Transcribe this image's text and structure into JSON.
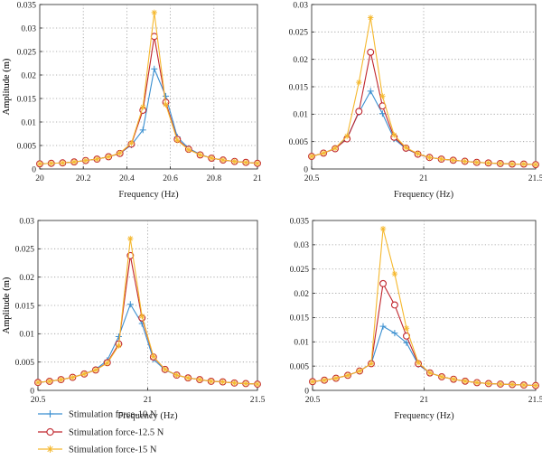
{
  "chart_data": [
    {
      "type": "line",
      "xlabel": "Frequency (Hz)",
      "ylabel": "Amplitude (m)",
      "xlim": [
        20,
        21
      ],
      "ylim": [
        0,
        0.035
      ],
      "x_ticks": [
        "20",
        "20.2",
        "20.4",
        "20.6",
        "20.8",
        "21"
      ],
      "x_tick_values": [
        20,
        20.2,
        20.4,
        20.6,
        20.8,
        21
      ],
      "y_ticks": [
        "0",
        "0.005",
        "0.01",
        "0.015",
        "0.02",
        "0.025",
        "0.03",
        "0.035"
      ],
      "y_tick_values": [
        0,
        0.005,
        0.01,
        0.015,
        0.02,
        0.025,
        0.03,
        0.035
      ],
      "grid": "dotted-major",
      "x": [
        20.0,
        20.053,
        20.105,
        20.158,
        20.211,
        20.263,
        20.316,
        20.368,
        20.421,
        20.474,
        20.526,
        20.579,
        20.632,
        20.684,
        20.737,
        20.789,
        20.842,
        20.895,
        20.947,
        21.0
      ],
      "series": [
        {
          "name": "Stimulation force-10 N",
          "values": [
            0.0011,
            0.0012,
            0.0013,
            0.0015,
            0.0018,
            0.0021,
            0.0026,
            0.0033,
            0.0051,
            0.0083,
            0.0213,
            0.0155,
            0.0068,
            0.0044,
            0.0031,
            0.0023,
            0.0019,
            0.0016,
            0.0014,
            0.0012
          ]
        },
        {
          "name": "Stimulation force-12.5 N",
          "values": [
            0.0011,
            0.0012,
            0.0013,
            0.0015,
            0.0018,
            0.0021,
            0.0026,
            0.0033,
            0.0053,
            0.0125,
            0.0282,
            0.0142,
            0.0063,
            0.0042,
            0.003,
            0.0023,
            0.0019,
            0.0016,
            0.0014,
            0.0012
          ]
        },
        {
          "name": "Stimulation force-15 N",
          "values": [
            0.0011,
            0.0012,
            0.0013,
            0.0015,
            0.0018,
            0.0021,
            0.0026,
            0.0034,
            0.0055,
            0.0132,
            0.0333,
            0.0137,
            0.0061,
            0.0041,
            0.003,
            0.0023,
            0.0019,
            0.0016,
            0.0014,
            0.0012
          ]
        }
      ]
    },
    {
      "type": "line",
      "xlabel": "Frequency (Hz)",
      "ylabel": "Amplitude (m)",
      "xlim": [
        20.5,
        21.5
      ],
      "ylim": [
        0,
        0.03
      ],
      "x_ticks": [
        "20.5",
        "21",
        "21.5"
      ],
      "x_tick_values": [
        20.5,
        21,
        21.5
      ],
      "y_ticks": [
        "0",
        "0.005",
        "0.01",
        "0.015",
        "0.02",
        "0.025",
        "0.03"
      ],
      "y_tick_values": [
        0,
        0.005,
        0.01,
        0.015,
        0.02,
        0.025,
        0.03
      ],
      "grid": "dotted-major",
      "x": [
        20.5,
        20.553,
        20.605,
        20.658,
        20.711,
        20.763,
        20.816,
        20.868,
        20.921,
        20.974,
        21.026,
        21.079,
        21.132,
        21.184,
        21.237,
        21.289,
        21.342,
        21.395,
        21.447,
        21.5
      ],
      "series": [
        {
          "name": "Stimulation force-10 N",
          "values": [
            0.0023,
            0.0029,
            0.0038,
            0.0057,
            0.0103,
            0.0142,
            0.0101,
            0.0055,
            0.0037,
            0.0027,
            0.0021,
            0.0018,
            0.0016,
            0.0014,
            0.0012,
            0.0011,
            0.001,
            0.0009,
            0.0009,
            0.0008
          ]
        },
        {
          "name": "Stimulation force-12.5 N",
          "values": [
            0.0023,
            0.0029,
            0.0037,
            0.0055,
            0.0105,
            0.0213,
            0.0115,
            0.0058,
            0.0038,
            0.0027,
            0.0021,
            0.0018,
            0.0016,
            0.0014,
            0.0012,
            0.0011,
            0.001,
            0.0009,
            0.0009,
            0.0008
          ]
        },
        {
          "name": "Stimulation force-15 N",
          "values": [
            0.0023,
            0.0029,
            0.0038,
            0.006,
            0.0158,
            0.0276,
            0.0133,
            0.0062,
            0.0039,
            0.0028,
            0.0021,
            0.0018,
            0.0016,
            0.0014,
            0.0012,
            0.0011,
            0.001,
            0.0009,
            0.0009,
            0.0008
          ]
        }
      ]
    },
    {
      "type": "line",
      "xlabel": "Frequency (Hz)",
      "ylabel": "Amplitude (m)",
      "xlim": [
        20.5,
        21.5
      ],
      "ylim": [
        0,
        0.03
      ],
      "x_ticks": [
        "20.5",
        "21",
        "21.5"
      ],
      "x_tick_values": [
        20.5,
        21,
        21.5
      ],
      "y_ticks": [
        "0",
        "0.005",
        "0.01",
        "0.015",
        "0.02",
        "0.025",
        "0.03"
      ],
      "y_tick_values": [
        0,
        0.005,
        0.01,
        0.015,
        0.02,
        0.025,
        0.03
      ],
      "grid": "dotted-major",
      "x": [
        20.5,
        20.553,
        20.605,
        20.658,
        20.711,
        20.763,
        20.816,
        20.868,
        20.921,
        20.974,
        21.026,
        21.079,
        21.132,
        21.184,
        21.237,
        21.289,
        21.342,
        21.395,
        21.447,
        21.5
      ],
      "series": [
        {
          "name": "Stimulation force-10 N",
          "values": [
            0.0014,
            0.0016,
            0.0019,
            0.0023,
            0.0029,
            0.0037,
            0.0053,
            0.0095,
            0.0152,
            0.0118,
            0.0055,
            0.0036,
            0.0027,
            0.0022,
            0.0019,
            0.0016,
            0.0015,
            0.0013,
            0.0012,
            0.0011
          ]
        },
        {
          "name": "Stimulation force-12.5 N",
          "values": [
            0.0014,
            0.0016,
            0.0019,
            0.0023,
            0.0029,
            0.0036,
            0.0049,
            0.0082,
            0.0238,
            0.0128,
            0.0059,
            0.0037,
            0.0027,
            0.0022,
            0.0019,
            0.0016,
            0.0015,
            0.0013,
            0.0012,
            0.0011
          ]
        },
        {
          "name": "Stimulation force-15 N",
          "values": [
            0.0014,
            0.0016,
            0.0019,
            0.0023,
            0.0029,
            0.0036,
            0.0048,
            0.0079,
            0.0268,
            0.0131,
            0.006,
            0.0037,
            0.0027,
            0.0022,
            0.0019,
            0.0016,
            0.0015,
            0.0013,
            0.0012,
            0.0011
          ]
        }
      ]
    },
    {
      "type": "line",
      "xlabel": "Frequency (Hz)",
      "ylabel": "Amplitude (m)",
      "xlim": [
        20.5,
        21.5
      ],
      "ylim": [
        0,
        0.035
      ],
      "x_ticks": [
        "20.5",
        "21",
        "21.5"
      ],
      "x_tick_values": [
        20.5,
        21,
        21.5
      ],
      "y_ticks": [
        "0",
        "0.005",
        "0.01",
        "0.015",
        "0.02",
        "0.025",
        "0.03",
        "0.035"
      ],
      "y_tick_values": [
        0,
        0.005,
        0.01,
        0.015,
        0.02,
        0.025,
        0.03,
        0.035
      ],
      "grid": "dotted-major",
      "x": [
        20.5,
        20.553,
        20.605,
        20.658,
        20.711,
        20.763,
        20.816,
        20.868,
        20.921,
        20.974,
        21.026,
        21.079,
        21.132,
        21.184,
        21.237,
        21.289,
        21.342,
        21.395,
        21.447,
        21.5
      ],
      "series": [
        {
          "name": "Stimulation force-10 N",
          "values": [
            0.0018,
            0.0021,
            0.0025,
            0.0031,
            0.004,
            0.0055,
            0.0132,
            0.0118,
            0.0098,
            0.0053,
            0.0036,
            0.0028,
            0.0023,
            0.0019,
            0.0016,
            0.0014,
            0.0013,
            0.0012,
            0.0011,
            0.001
          ]
        },
        {
          "name": "Stimulation force-12.5 N",
          "values": [
            0.0018,
            0.0021,
            0.0025,
            0.0031,
            0.004,
            0.0055,
            0.022,
            0.0176,
            0.0112,
            0.0055,
            0.0036,
            0.0028,
            0.0023,
            0.0019,
            0.0016,
            0.0014,
            0.0013,
            0.0012,
            0.0011,
            0.001
          ]
        },
        {
          "name": "Stimulation force-15 N",
          "values": [
            0.0018,
            0.0021,
            0.0025,
            0.0031,
            0.004,
            0.0055,
            0.0333,
            0.024,
            0.0128,
            0.0057,
            0.0036,
            0.0028,
            0.0023,
            0.0019,
            0.0016,
            0.0014,
            0.0013,
            0.0012,
            0.0011,
            0.001
          ]
        }
      ]
    }
  ],
  "legend": {
    "entries": [
      {
        "label": "Stimulation force-10 N",
        "color": "#3a8fd0",
        "marker": "plus"
      },
      {
        "label": "Stimulation force-12.5 N",
        "color": "#c0262d",
        "marker": "circle"
      },
      {
        "label": "Stimulation force-15 N",
        "color": "#f5b82e",
        "marker": "star"
      }
    ]
  },
  "colors": {
    "series": [
      "#3a8fd0",
      "#c0262d",
      "#f5b82e"
    ],
    "axis": "#222222",
    "grid": "#9a9a9a"
  }
}
